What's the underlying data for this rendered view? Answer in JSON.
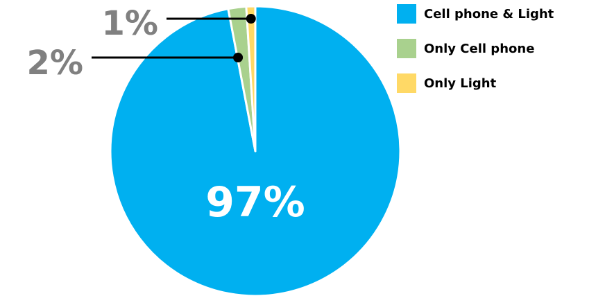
{
  "chart_data": {
    "type": "pie",
    "title": "",
    "slices": [
      {
        "label": "Cell phone & Light",
        "value": 97,
        "display": "97%",
        "color": "#00b0f0"
      },
      {
        "label": "Only Cell phone",
        "value": 2,
        "display": "2%",
        "color": "#a9d18e"
      },
      {
        "label": "Only Light",
        "value": 1,
        "display": "1%",
        "color": "#ffd966"
      }
    ],
    "legend_position": "right",
    "start_angle": "top",
    "direction": "clockwise"
  }
}
